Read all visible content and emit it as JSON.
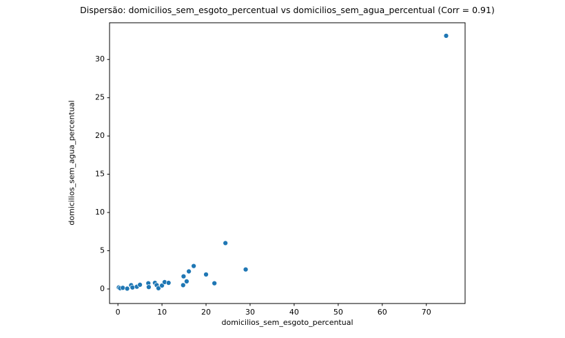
{
  "chart_data": {
    "type": "scatter",
    "title": "Dispersão: domicilios_sem_esgoto_percentual vs domicilios_sem_agua_percentual (Corr = 0.91)",
    "xlabel": "domicilios_sem_esgoto_percentual",
    "ylabel": "domicilios_sem_agua_percentual",
    "correlation": 0.91,
    "xlim": [
      -1.9,
      78.8
    ],
    "ylim": [
      -1.9,
      34.8
    ],
    "x_ticks": [
      0,
      10,
      20,
      30,
      40,
      50,
      60,
      70
    ],
    "y_ticks": [
      0,
      5,
      10,
      15,
      20,
      25,
      30
    ],
    "grid": false,
    "legend": "none",
    "marker_color": "#1f77b4",
    "marker_edge_color": "#ffffff",
    "points": [
      [
        0.2,
        0.2
      ],
      [
        0.5,
        0.1
      ],
      [
        1.1,
        0.15
      ],
      [
        2.1,
        0.05
      ],
      [
        3.0,
        0.5
      ],
      [
        3.3,
        0.2
      ],
      [
        4.3,
        0.3
      ],
      [
        5.0,
        0.55
      ],
      [
        6.9,
        0.75
      ],
      [
        7.0,
        0.25
      ],
      [
        8.4,
        0.8
      ],
      [
        8.8,
        0.5
      ],
      [
        9.2,
        0.1
      ],
      [
        10.0,
        0.45
      ],
      [
        10.6,
        0.9
      ],
      [
        11.5,
        0.8
      ],
      [
        14.8,
        0.5
      ],
      [
        14.9,
        1.65
      ],
      [
        15.6,
        1.0
      ],
      [
        16.1,
        2.3
      ],
      [
        17.2,
        3.0
      ],
      [
        20.0,
        1.9
      ],
      [
        21.9,
        0.75
      ],
      [
        24.4,
        6.0
      ],
      [
        29.0,
        2.55
      ],
      [
        74.5,
        33.1
      ]
    ]
  }
}
